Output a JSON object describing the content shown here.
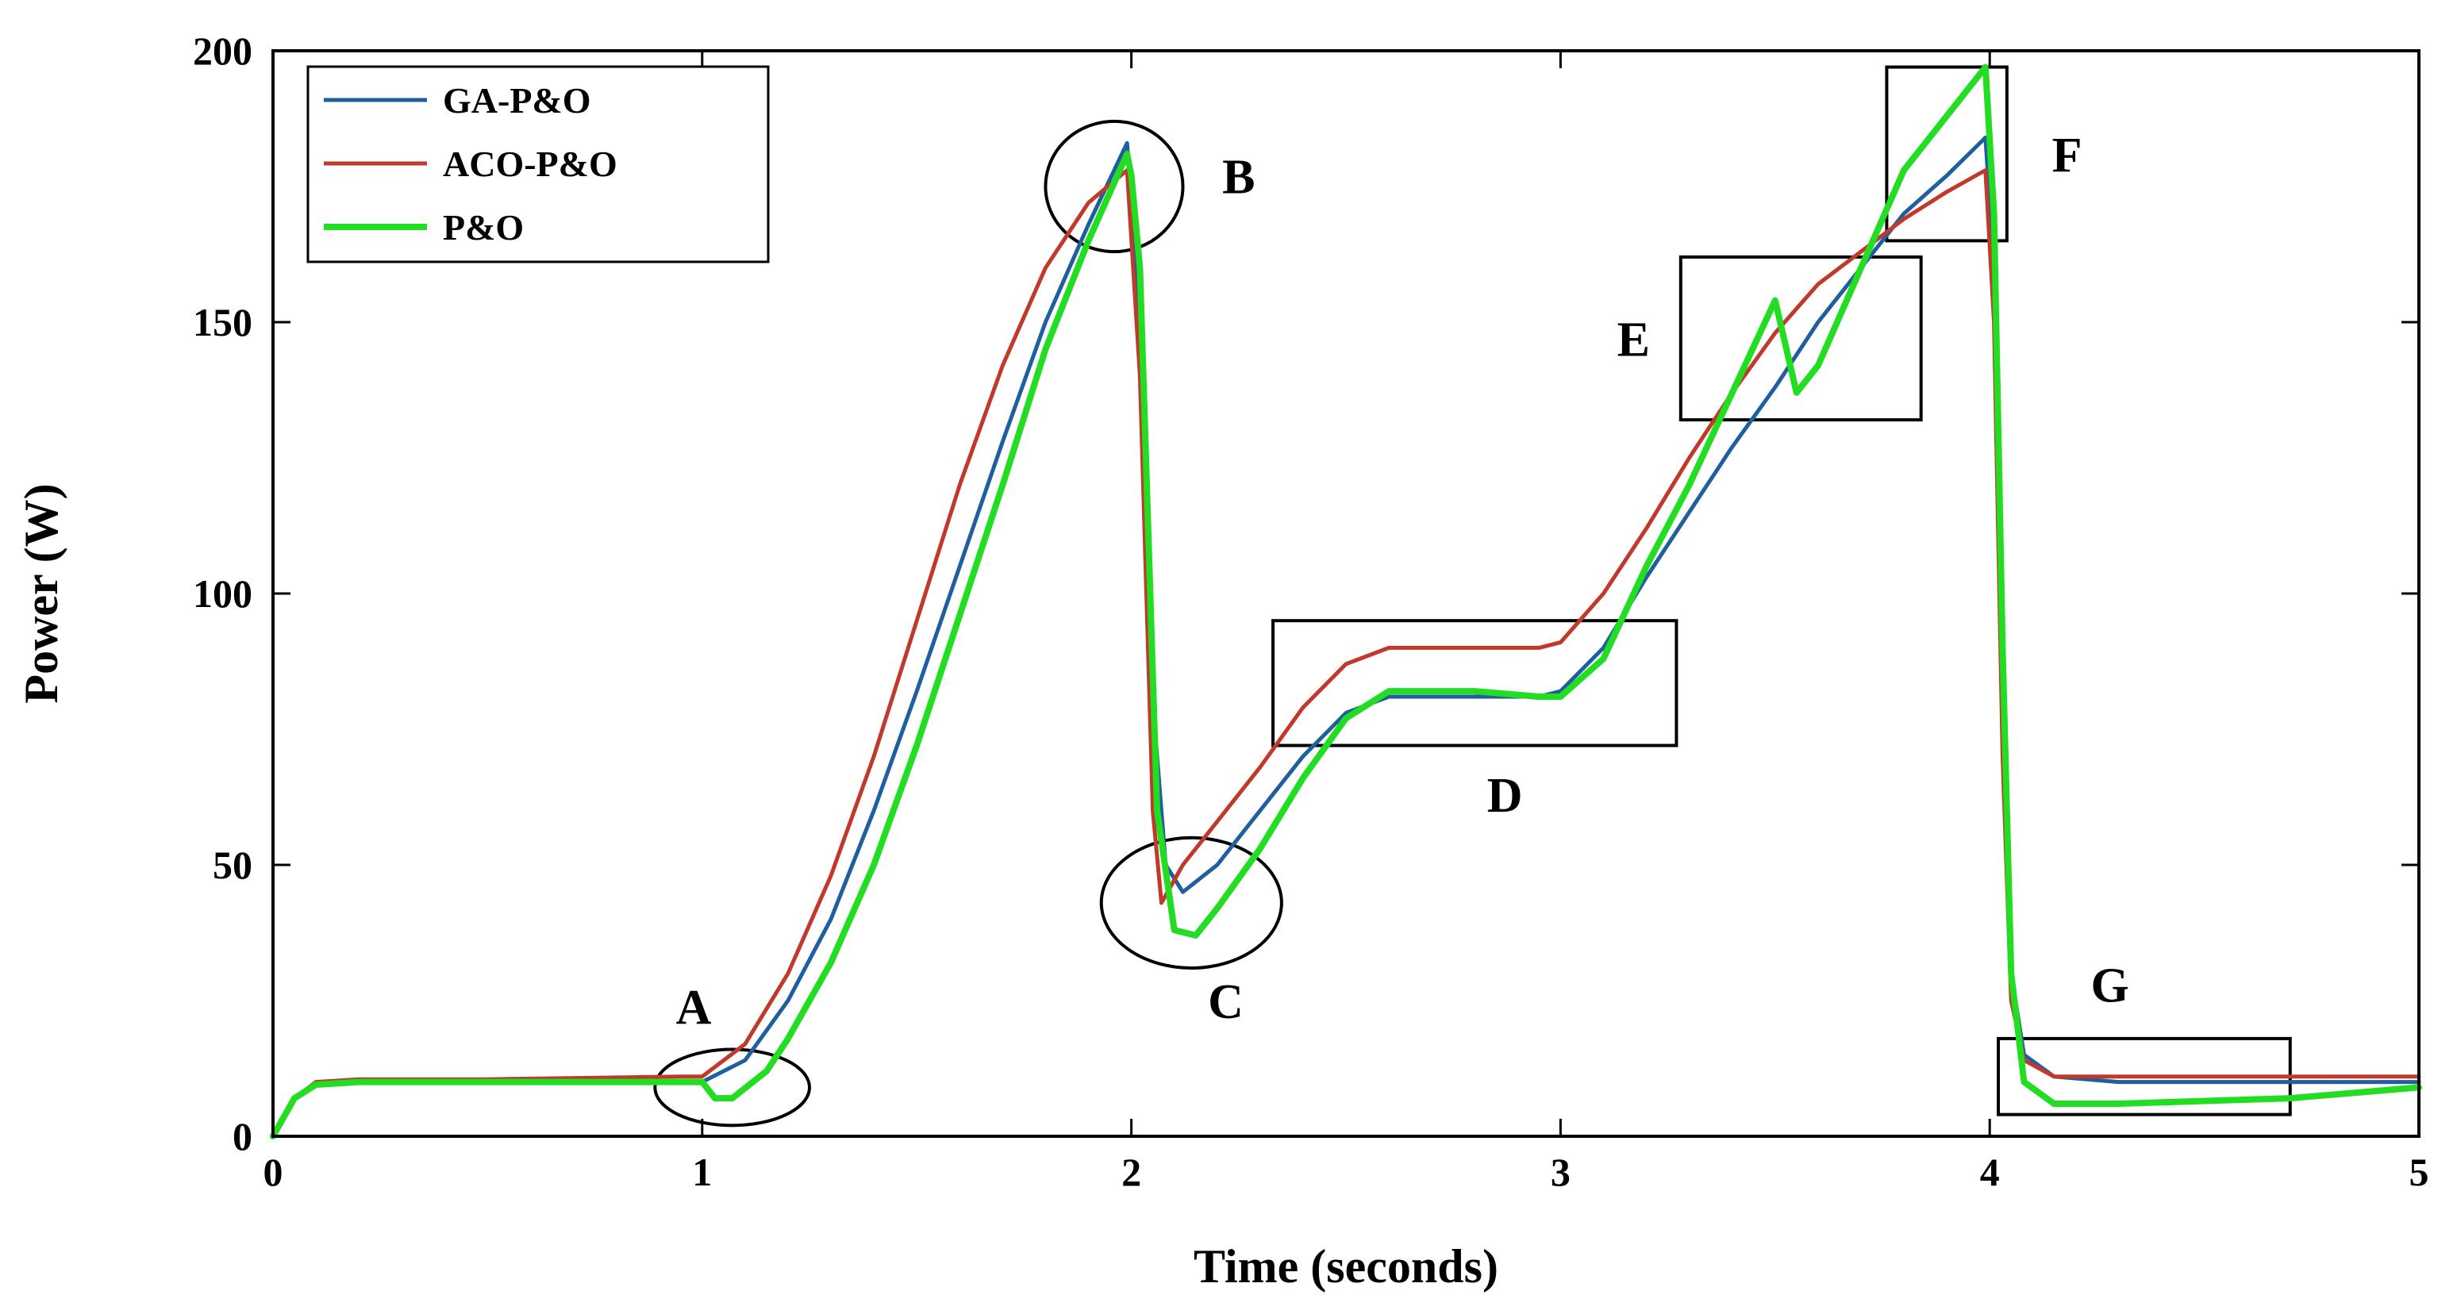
{
  "chart_data": {
    "type": "line",
    "title": "",
    "xlabel": "Time (seconds)",
    "ylabel": "Power (W)",
    "xlim": [
      0,
      5
    ],
    "ylim": [
      0,
      200
    ],
    "xticks": [
      "0",
      "1",
      "2",
      "3",
      "4",
      "5"
    ],
    "yticks": [
      "0",
      "50",
      "100",
      "150",
      "200"
    ],
    "grid": false,
    "legend_position": "top-left",
    "series": [
      {
        "name": "GA-P&O",
        "color": "#1f5fa0",
        "points": [
          [
            0,
            0
          ],
          [
            0.05,
            7
          ],
          [
            0.1,
            9.5
          ],
          [
            0.2,
            10
          ],
          [
            0.5,
            10
          ],
          [
            0.95,
            10
          ],
          [
            1.0,
            10
          ],
          [
            1.1,
            14
          ],
          [
            1.2,
            25
          ],
          [
            1.3,
            40
          ],
          [
            1.4,
            60
          ],
          [
            1.5,
            82
          ],
          [
            1.6,
            105
          ],
          [
            1.7,
            128
          ],
          [
            1.8,
            150
          ],
          [
            1.9,
            168
          ],
          [
            1.99,
            183
          ],
          [
            2.02,
            150
          ],
          [
            2.05,
            80
          ],
          [
            2.08,
            50
          ],
          [
            2.12,
            45
          ],
          [
            2.2,
            50
          ],
          [
            2.3,
            60
          ],
          [
            2.4,
            70
          ],
          [
            2.5,
            78
          ],
          [
            2.6,
            81
          ],
          [
            2.8,
            81
          ],
          [
            2.95,
            81
          ],
          [
            3.0,
            82
          ],
          [
            3.1,
            90
          ],
          [
            3.2,
            103
          ],
          [
            3.3,
            115
          ],
          [
            3.4,
            127
          ],
          [
            3.5,
            138
          ],
          [
            3.6,
            150
          ],
          [
            3.7,
            160
          ],
          [
            3.8,
            170
          ],
          [
            3.9,
            177
          ],
          [
            3.99,
            184
          ],
          [
            4.01,
            160
          ],
          [
            4.03,
            80
          ],
          [
            4.05,
            30
          ],
          [
            4.08,
            15
          ],
          [
            4.15,
            11
          ],
          [
            4.3,
            10
          ],
          [
            4.7,
            10
          ],
          [
            5.0,
            10
          ]
        ]
      },
      {
        "name": "ACO-P&O",
        "color": "#c0392b",
        "points": [
          [
            0,
            0
          ],
          [
            0.05,
            7
          ],
          [
            0.1,
            10
          ],
          [
            0.2,
            10.5
          ],
          [
            0.5,
            10.5
          ],
          [
            0.95,
            11
          ],
          [
            1.0,
            11
          ],
          [
            1.1,
            17
          ],
          [
            1.2,
            30
          ],
          [
            1.3,
            48
          ],
          [
            1.4,
            70
          ],
          [
            1.5,
            95
          ],
          [
            1.6,
            120
          ],
          [
            1.7,
            142
          ],
          [
            1.8,
            160
          ],
          [
            1.9,
            172
          ],
          [
            1.99,
            178
          ],
          [
            2.02,
            140
          ],
          [
            2.05,
            60
          ],
          [
            2.07,
            43
          ],
          [
            2.12,
            50
          ],
          [
            2.2,
            58
          ],
          [
            2.3,
            68
          ],
          [
            2.4,
            79
          ],
          [
            2.5,
            87
          ],
          [
            2.6,
            90
          ],
          [
            2.8,
            90
          ],
          [
            2.95,
            90
          ],
          [
            3.0,
            91
          ],
          [
            3.1,
            100
          ],
          [
            3.2,
            112
          ],
          [
            3.3,
            125
          ],
          [
            3.4,
            137
          ],
          [
            3.5,
            148
          ],
          [
            3.6,
            157
          ],
          [
            3.7,
            163
          ],
          [
            3.8,
            169
          ],
          [
            3.9,
            174
          ],
          [
            3.99,
            178
          ],
          [
            4.01,
            150
          ],
          [
            4.03,
            70
          ],
          [
            4.05,
            25
          ],
          [
            4.08,
            14
          ],
          [
            4.15,
            11
          ],
          [
            4.3,
            11
          ],
          [
            4.7,
            11
          ],
          [
            5.0,
            11
          ]
        ]
      },
      {
        "name": "P&O",
        "color": "#22dd22",
        "points": [
          [
            0,
            0
          ],
          [
            0.05,
            7
          ],
          [
            0.1,
            9.5
          ],
          [
            0.2,
            10
          ],
          [
            0.5,
            10
          ],
          [
            0.95,
            10
          ],
          [
            1.0,
            10
          ],
          [
            1.03,
            7
          ],
          [
            1.07,
            7
          ],
          [
            1.15,
            12
          ],
          [
            1.2,
            18
          ],
          [
            1.3,
            32
          ],
          [
            1.4,
            50
          ],
          [
            1.5,
            72
          ],
          [
            1.6,
            96
          ],
          [
            1.7,
            120
          ],
          [
            1.8,
            145
          ],
          [
            1.9,
            165
          ],
          [
            1.99,
            181
          ],
          [
            2.0,
            177
          ],
          [
            2.02,
            160
          ],
          [
            2.04,
            110
          ],
          [
            2.06,
            60
          ],
          [
            2.1,
            38
          ],
          [
            2.15,
            37
          ],
          [
            2.2,
            42
          ],
          [
            2.3,
            53
          ],
          [
            2.4,
            66
          ],
          [
            2.5,
            77
          ],
          [
            2.6,
            82
          ],
          [
            2.8,
            82
          ],
          [
            2.95,
            81
          ],
          [
            3.0,
            81
          ],
          [
            3.1,
            88
          ],
          [
            3.2,
            105
          ],
          [
            3.3,
            120
          ],
          [
            3.4,
            137
          ],
          [
            3.5,
            154
          ],
          [
            3.55,
            137
          ],
          [
            3.6,
            142
          ],
          [
            3.7,
            160
          ],
          [
            3.8,
            178
          ],
          [
            3.9,
            188
          ],
          [
            3.99,
            197
          ],
          [
            4.01,
            170
          ],
          [
            4.03,
            90
          ],
          [
            4.05,
            30
          ],
          [
            4.08,
            10
          ],
          [
            4.15,
            6
          ],
          [
            4.3,
            6
          ],
          [
            4.7,
            7
          ],
          [
            5.0,
            9
          ]
        ]
      }
    ],
    "annotations": [
      {
        "label": "A",
        "shape": "ellipse",
        "cx": 1.07,
        "cy": 9,
        "rx": 0.18,
        "ry": 7,
        "text_x": 0.98,
        "text_y": 24
      },
      {
        "label": "B",
        "shape": "ellipse",
        "cx": 1.96,
        "cy": 175,
        "rx": 0.16,
        "ry": 12,
        "text_x": 2.25,
        "text_y": 177
      },
      {
        "label": "C",
        "shape": "ellipse",
        "cx": 2.14,
        "cy": 43,
        "rx": 0.21,
        "ry": 12,
        "text_x": 2.22,
        "text_y": 25
      },
      {
        "label": "D",
        "shape": "rect",
        "x1": 2.33,
        "y1": 72,
        "x2": 3.27,
        "y2": 95,
        "text_x": 2.87,
        "text_y": 63
      },
      {
        "label": "E",
        "shape": "rect",
        "x1": 3.28,
        "y1": 132,
        "x2": 3.84,
        "y2": 162,
        "text_x": 3.17,
        "text_y": 147
      },
      {
        "label": "F",
        "shape": "rect",
        "x1": 3.76,
        "y1": 165,
        "x2": 4.04,
        "y2": 197,
        "text_x": 4.18,
        "text_y": 181
      },
      {
        "label": "G",
        "shape": "rect",
        "x1": 4.02,
        "y1": 4,
        "x2": 4.7,
        "y2": 18,
        "text_x": 4.28,
        "text_y": 28
      }
    ]
  }
}
